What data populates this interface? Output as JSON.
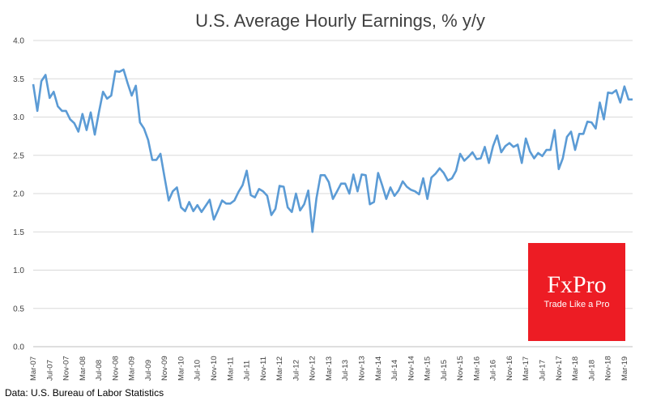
{
  "chart_data": {
    "type": "line",
    "title": "U.S. Average Hourly Earnings, % y/y",
    "xlabel": "",
    "ylabel": "",
    "ylim": [
      0,
      4
    ],
    "yticks": [
      "0.0",
      "0.5",
      "1.0",
      "1.5",
      "2.0",
      "2.5",
      "3.0",
      "3.5",
      "4.0"
    ],
    "xtick_labels": [
      "Mar-07",
      "Jul-07",
      "Nov-07",
      "Mar-08",
      "Jul-08",
      "Nov-08",
      "Mar-09",
      "Jul-09",
      "Nov-09",
      "Mar-10",
      "Jul-10",
      "Nov-10",
      "Mar-11",
      "Jul-11",
      "Nov-11",
      "Mar-12",
      "Jul-12",
      "Nov-12",
      "Mar-13",
      "Jul-13",
      "Nov-13",
      "Mar-14",
      "Jul-14",
      "Nov-14",
      "Mar-15",
      "Jul-15",
      "Nov-15",
      "Mar-16",
      "Jul-16",
      "Nov-16",
      "Mar-17",
      "Jul-17",
      "Nov-17",
      "Mar-18",
      "Jul-18",
      "Nov-18",
      "Mar-19"
    ],
    "grid": "horizontal",
    "line_color": "#5b9bd5",
    "series": [
      {
        "values": [
          3.43,
          3.08,
          3.47,
          3.55,
          3.25,
          3.33,
          3.14,
          3.08,
          3.08,
          2.97,
          2.92,
          2.81,
          3.04,
          2.83,
          3.06,
          2.77,
          3.06,
          3.33,
          3.24,
          3.28,
          3.6,
          3.59,
          3.62,
          3.44,
          3.28,
          3.41,
          2.93,
          2.85,
          2.7,
          2.44,
          2.44,
          2.52,
          2.21,
          1.91,
          2.03,
          2.08,
          1.82,
          1.77,
          1.89,
          1.77,
          1.85,
          1.76,
          1.84,
          1.92,
          1.66,
          1.78,
          1.91,
          1.87,
          1.87,
          1.91,
          2.02,
          2.11,
          2.3,
          1.98,
          1.95,
          2.06,
          2.03,
          1.97,
          1.72,
          1.8,
          2.1,
          2.09,
          1.82,
          1.76,
          2.0,
          1.78,
          1.86,
          2.04,
          1.5,
          1.94,
          2.24,
          2.24,
          2.15,
          1.93,
          2.03,
          2.13,
          2.13,
          2.0,
          2.25,
          2.03,
          2.25,
          2.24,
          1.86,
          1.89,
          2.27,
          2.11,
          1.93,
          2.08,
          1.97,
          2.04,
          2.16,
          2.09,
          2.05,
          2.03,
          1.99,
          2.2,
          1.93,
          2.21,
          2.26,
          2.33,
          2.27,
          2.17,
          2.2,
          2.3,
          2.52,
          2.43,
          2.48,
          2.54,
          2.45,
          2.46,
          2.61,
          2.4,
          2.62,
          2.76,
          2.54,
          2.62,
          2.66,
          2.61,
          2.64,
          2.4,
          2.72,
          2.55,
          2.46,
          2.53,
          2.49,
          2.57,
          2.57,
          2.83,
          2.32,
          2.46,
          2.74,
          2.81,
          2.57,
          2.78,
          2.78,
          2.94,
          2.93,
          2.85,
          3.19,
          2.97,
          3.32,
          3.31,
          3.35,
          3.19,
          3.4,
          3.23,
          3.23
        ]
      }
    ]
  },
  "source": "Data: U.S. Bureau of Labor Statistics",
  "logo": {
    "brand": "FxPro",
    "tagline": "Trade Like a Pro",
    "color": "#ed1c24"
  }
}
